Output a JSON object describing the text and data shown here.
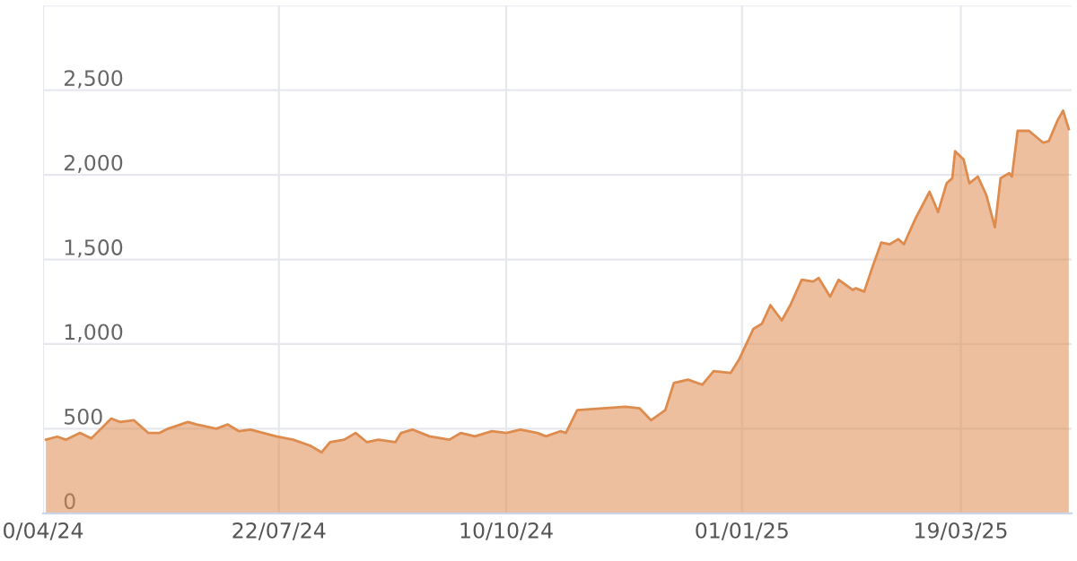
{
  "chart_data": {
    "type": "area",
    "x": [
      "2024-05-01",
      "2024-05-05",
      "2024-05-08",
      "2024-05-13",
      "2024-05-17",
      "2024-05-24",
      "2024-05-27",
      "2024-06-01",
      "2024-06-06",
      "2024-06-10",
      "2024-06-13",
      "2024-06-20",
      "2024-06-23",
      "2024-06-30",
      "2024-07-04",
      "2024-07-08",
      "2024-07-12",
      "2024-07-21",
      "2024-07-27",
      "2024-08-02",
      "2024-08-06",
      "2024-08-09",
      "2024-08-14",
      "2024-08-18",
      "2024-08-22",
      "2024-08-26",
      "2024-09-01",
      "2024-09-03",
      "2024-09-07",
      "2024-09-13",
      "2024-09-20",
      "2024-09-24",
      "2024-09-29",
      "2024-10-05",
      "2024-10-10",
      "2024-10-15",
      "2024-10-21",
      "2024-10-24",
      "2024-10-29",
      "2024-10-31",
      "2024-11-04",
      "2024-11-13",
      "2024-11-21",
      "2024-11-26",
      "2024-11-30",
      "2024-12-05",
      "2024-12-08",
      "2024-12-13",
      "2024-12-18",
      "2024-12-22",
      "2024-12-28",
      "2024-12-31",
      "2025-01-05",
      "2025-01-08",
      "2025-01-11",
      "2025-01-15",
      "2025-01-18",
      "2025-01-22",
      "2025-01-26",
      "2025-01-28",
      "2025-02-01",
      "2025-02-04",
      "2025-02-09",
      "2025-02-10",
      "2025-02-13",
      "2025-02-16",
      "2025-02-19",
      "2025-02-22",
      "2025-02-25",
      "2025-02-27",
      "2025-03-03",
      "2025-03-08",
      "2025-03-11",
      "2025-03-14",
      "2025-03-16",
      "2025-03-17",
      "2025-03-20",
      "2025-03-22",
      "2025-03-25",
      "2025-03-28",
      "2025-03-31",
      "2025-04-02",
      "2025-04-05",
      "2025-04-06",
      "2025-04-08",
      "2025-04-12",
      "2025-04-17",
      "2025-04-19",
      "2025-04-22",
      "2025-04-24",
      "2025-04-26"
    ],
    "series": [
      {
        "color": "#de8b4e",
        "values": [
          435,
          453,
          435,
          475,
          443,
          560,
          540,
          550,
          475,
          475,
          500,
          540,
          525,
          500,
          525,
          485,
          495,
          455,
          435,
          400,
          360,
          420,
          435,
          475,
          420,
          435,
          420,
          475,
          495,
          455,
          435,
          475,
          455,
          485,
          475,
          495,
          475,
          455,
          485,
          475,
          610,
          620,
          630,
          620,
          550,
          610,
          770,
          790,
          760,
          840,
          830,
          910,
          1090,
          1120,
          1230,
          1140,
          1230,
          1380,
          1370,
          1390,
          1280,
          1380,
          1320,
          1330,
          1310,
          1460,
          1600,
          1590,
          1620,
          1590,
          1740,
          1900,
          1780,
          1950,
          1980,
          2140,
          2090,
          1950,
          1990,
          1880,
          1690,
          1980,
          2010,
          1990,
          2260,
          2260,
          2190,
          2200,
          2320,
          2380,
          2270
        ]
      }
    ],
    "xlim": [
      "2024-04-30",
      "2025-04-27"
    ],
    "xticks": [
      {
        "value": "2024-04-30",
        "label": "0/04/24"
      },
      {
        "value": "2024-07-22",
        "label": "22/07/24"
      },
      {
        "value": "2024-10-10",
        "label": "10/10/24"
      },
      {
        "value": "2025-01-01",
        "label": "01/01/25"
      },
      {
        "value": "2025-03-19",
        "label": "19/03/25"
      }
    ],
    "ylim": [
      0,
      3000
    ],
    "yticks": [
      {
        "value": 0,
        "label": "0"
      },
      {
        "value": 500,
        "label": "500"
      },
      {
        "value": 1000,
        "label": "1,000"
      },
      {
        "value": 1500,
        "label": "1,500"
      },
      {
        "value": 2000,
        "label": "2,000"
      },
      {
        "value": 2500,
        "label": "2,500"
      },
      {
        "value": 3000,
        "label": null
      }
    ],
    "grid": true
  }
}
